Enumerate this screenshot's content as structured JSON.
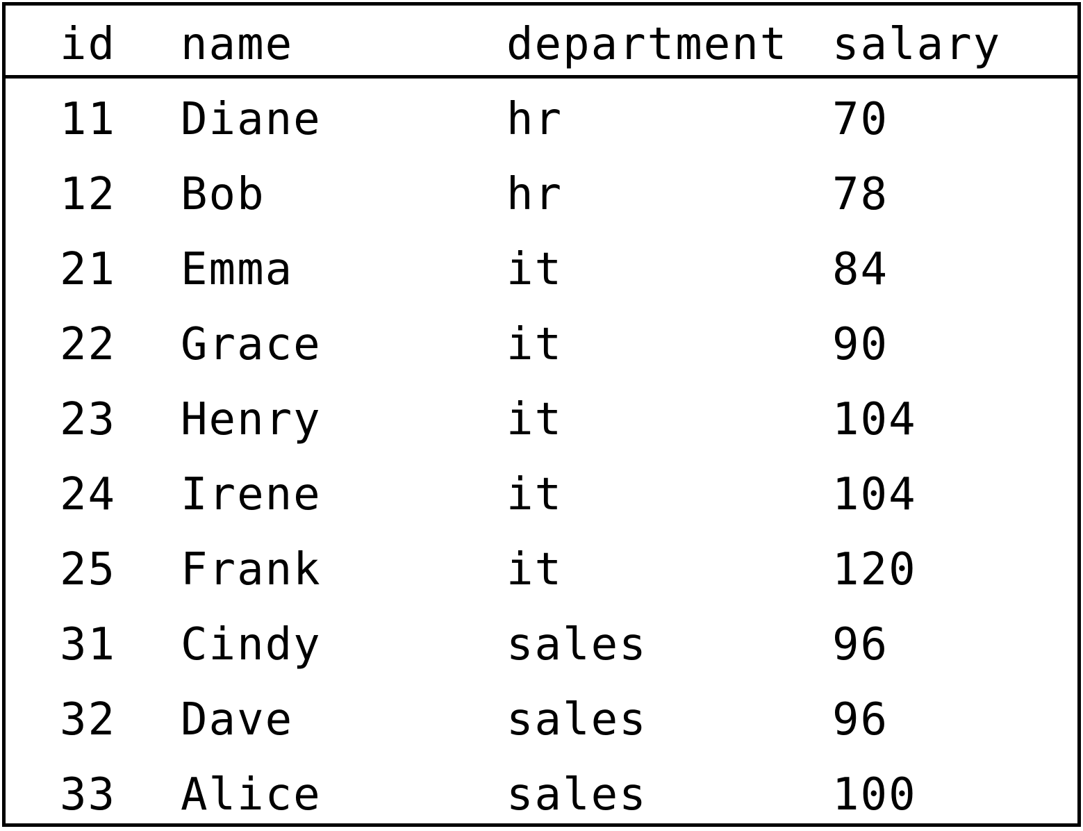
{
  "table": {
    "columns": [
      "id",
      "name",
      "department",
      "salary"
    ],
    "rows": [
      [
        "11",
        "Diane",
        "hr",
        "70"
      ],
      [
        "12",
        "Bob",
        "hr",
        "78"
      ],
      [
        "21",
        "Emma",
        "it",
        "84"
      ],
      [
        "22",
        "Grace",
        "it",
        "90"
      ],
      [
        "23",
        "Henry",
        "it",
        "104"
      ],
      [
        "24",
        "Irene",
        "it",
        "104"
      ],
      [
        "25",
        "Frank",
        "it",
        "120"
      ],
      [
        "31",
        "Cindy",
        "sales",
        "96"
      ],
      [
        "32",
        "Dave",
        "sales",
        "96"
      ],
      [
        "33",
        "Alice",
        "sales",
        "100"
      ]
    ]
  }
}
